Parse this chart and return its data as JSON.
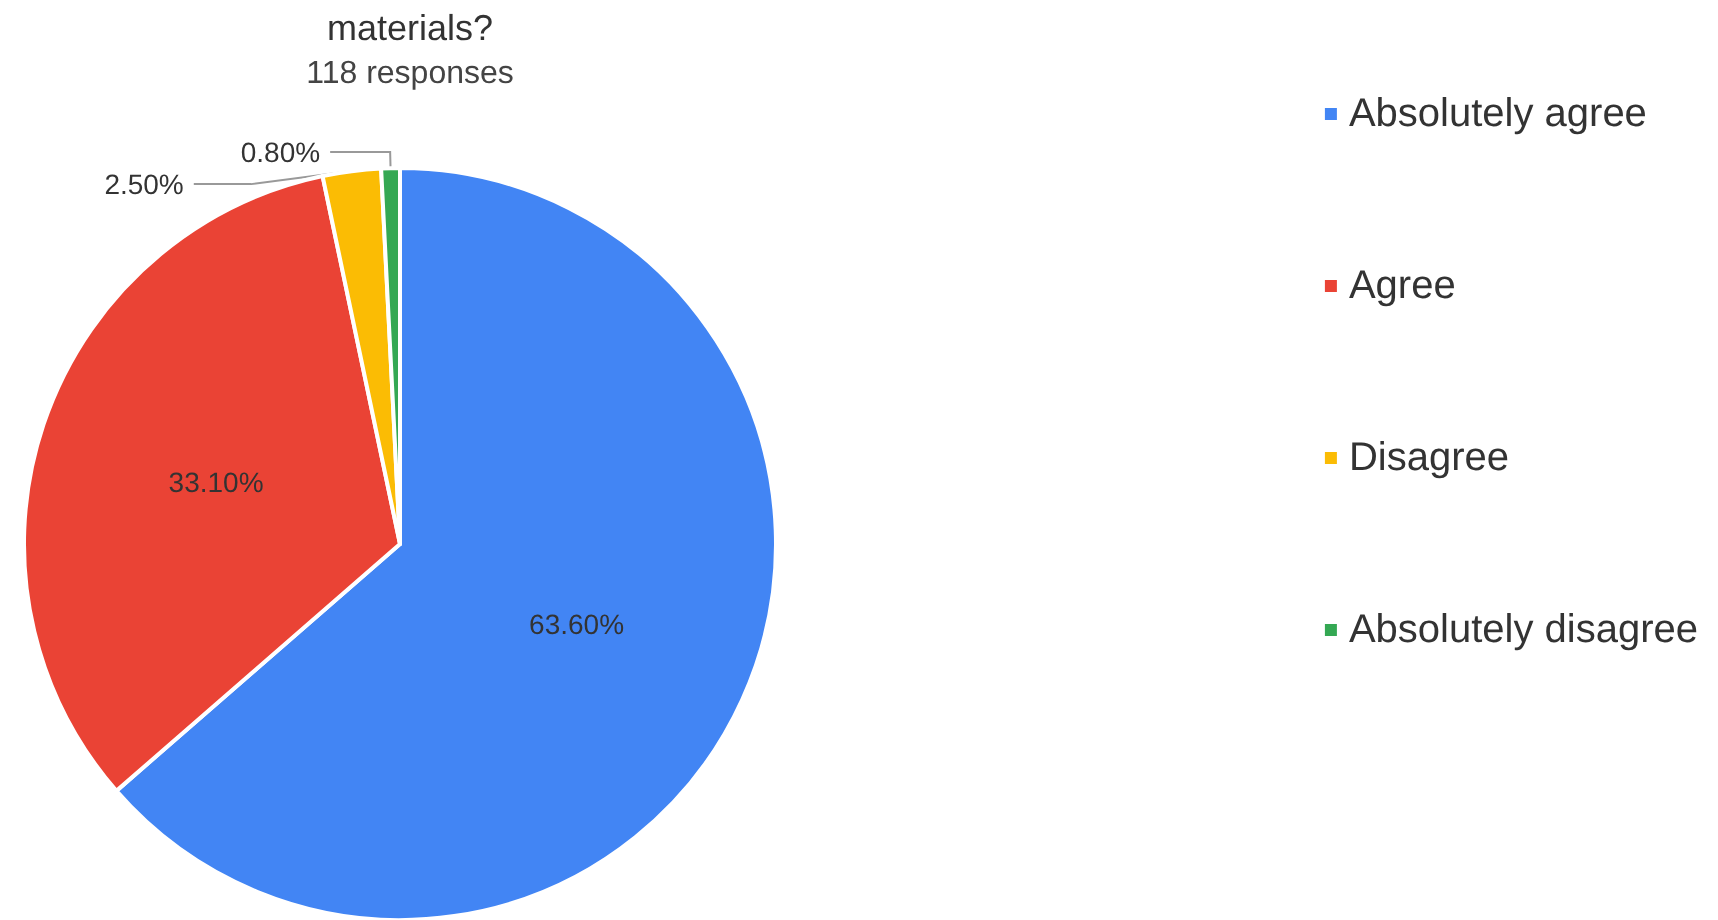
{
  "chart_data": {
    "type": "pie",
    "title": "materials?",
    "subtitle": "118 responses",
    "categories": [
      "Absolutely agree",
      "Agree",
      "Disagree",
      "Absolutely disagree"
    ],
    "values": [
      63.6,
      33.1,
      2.5,
      0.8
    ],
    "value_labels": [
      "63.60%",
      "33.10%",
      "2.50%",
      "0.80%"
    ],
    "colors": [
      "#4285f4",
      "#ea4335",
      "#fbbc04",
      "#34a853"
    ],
    "legend": "right"
  }
}
